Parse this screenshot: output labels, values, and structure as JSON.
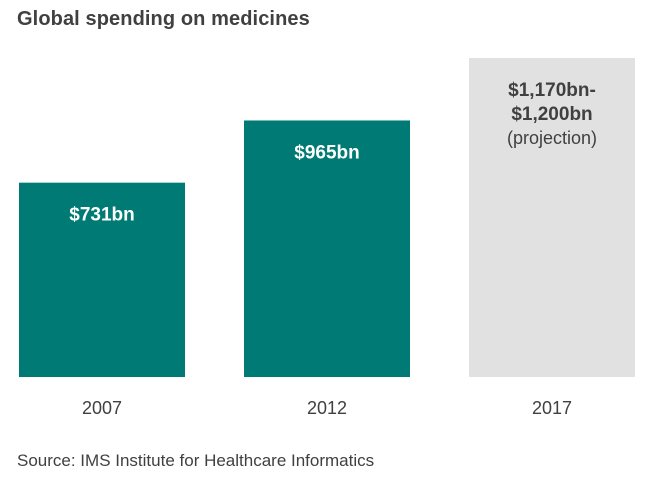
{
  "title": "Global spending on medicines",
  "source": "Source: IMS Institute for Healthcare Informatics",
  "colors": {
    "actual": "#007a74",
    "projection": "#e1e1e1",
    "label_on_actual": "#ffffff",
    "label_on_projection": "#404040",
    "text": "#404040"
  },
  "chart_data": {
    "type": "bar",
    "title": "Global spending on medicines",
    "categories": [
      "2007",
      "2012",
      "2017"
    ],
    "values": [
      731,
      965,
      1200
    ],
    "value_range_2017": [
      1170,
      1200
    ],
    "unit": "$bn",
    "data_labels": [
      [
        "$731bn"
      ],
      [
        "$965bn"
      ],
      [
        "$1,170bn-",
        "$1,200bn",
        "(projection)"
      ]
    ],
    "projected": [
      false,
      false,
      true
    ],
    "xlabel": "",
    "ylabel": "",
    "ylim": [
      0,
      1200
    ],
    "grid": false,
    "legend": "none"
  }
}
